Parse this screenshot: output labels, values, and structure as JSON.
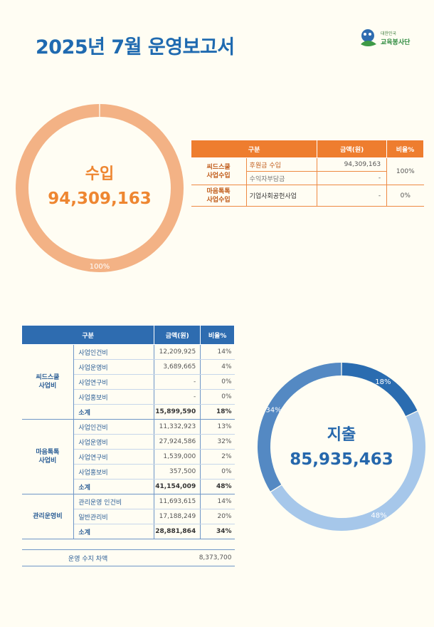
{
  "title": "2025년 7월 운영보고서",
  "logo": {
    "small_text": "대한민국",
    "name": "교육봉사단"
  },
  "colors": {
    "income": "#f3b285",
    "income_text": "#ee8631",
    "expense_series": [
      "#2a6cb0",
      "#a6c7ea",
      "#5489c3"
    ],
    "expense_text": "#2567ac"
  },
  "income": {
    "donut_title": "수입",
    "total": "94,309,163",
    "chart_data": {
      "type": "pie",
      "categories": [
        "수입"
      ],
      "values": [
        100
      ],
      "data_labels": [
        "100%"
      ]
    },
    "table": {
      "headers": [
        "구분",
        "금액(원)",
        "비율%"
      ],
      "groups": [
        {
          "category": "씨드스쿨\n사업수입",
          "rate": "100%",
          "rows": [
            {
              "item": "후원금 수입",
              "amount": "94,309,163"
            },
            {
              "item": "수익자부담금",
              "amount": "-"
            }
          ]
        },
        {
          "category": "마음톡톡\n사업수입",
          "rate": "0%",
          "rows": [
            {
              "item": "기업사회공헌사업",
              "amount": "-"
            }
          ]
        }
      ]
    }
  },
  "expense": {
    "donut_title": "지출",
    "total": "85,935,463",
    "chart_data": {
      "type": "pie",
      "categories": [
        "씨드스쿨 사업비",
        "마음톡톡 사업비",
        "관리운영비"
      ],
      "values": [
        18,
        48,
        34
      ],
      "data_labels": [
        "18%",
        "48%",
        "34%"
      ]
    },
    "table": {
      "headers": [
        "구분",
        "금액(원)",
        "비율%"
      ],
      "groups": [
        {
          "category": "씨드스쿨\n사업비",
          "rows": [
            {
              "item": "사업인건비",
              "amount": "12,209,925",
              "rate": "14%"
            },
            {
              "item": "사업운영비",
              "amount": "3,689,665",
              "rate": "4%"
            },
            {
              "item": "사업연구비",
              "amount": "-",
              "rate": "0%"
            },
            {
              "item": "사업홍보비",
              "amount": "-",
              "rate": "0%"
            }
          ],
          "subtotal": {
            "item": "소계",
            "amount": "15,899,590",
            "rate": "18%"
          }
        },
        {
          "category": "마음톡톡\n사업비",
          "rows": [
            {
              "item": "사업인건비",
              "amount": "11,332,923",
              "rate": "13%"
            },
            {
              "item": "사업운영비",
              "amount": "27,924,586",
              "rate": "32%"
            },
            {
              "item": "사업연구비",
              "amount": "1,539,000",
              "rate": "2%"
            },
            {
              "item": "사업홍보비",
              "amount": "357,500",
              "rate": "0%"
            }
          ],
          "subtotal": {
            "item": "소계",
            "amount": "41,154,009",
            "rate": "48%"
          }
        },
        {
          "category": "관리운영비",
          "rows": [
            {
              "item": "관리운영 인건비",
              "amount": "11,693,615",
              "rate": "14%"
            },
            {
              "item": "일반관리비",
              "amount": "17,188,249",
              "rate": "20%"
            }
          ],
          "subtotal": {
            "item": "소계",
            "amount": "28,881,864",
            "rate": "34%"
          }
        }
      ],
      "net": {
        "label": "운영 수지 차액",
        "amount": "8,373,700"
      }
    }
  }
}
